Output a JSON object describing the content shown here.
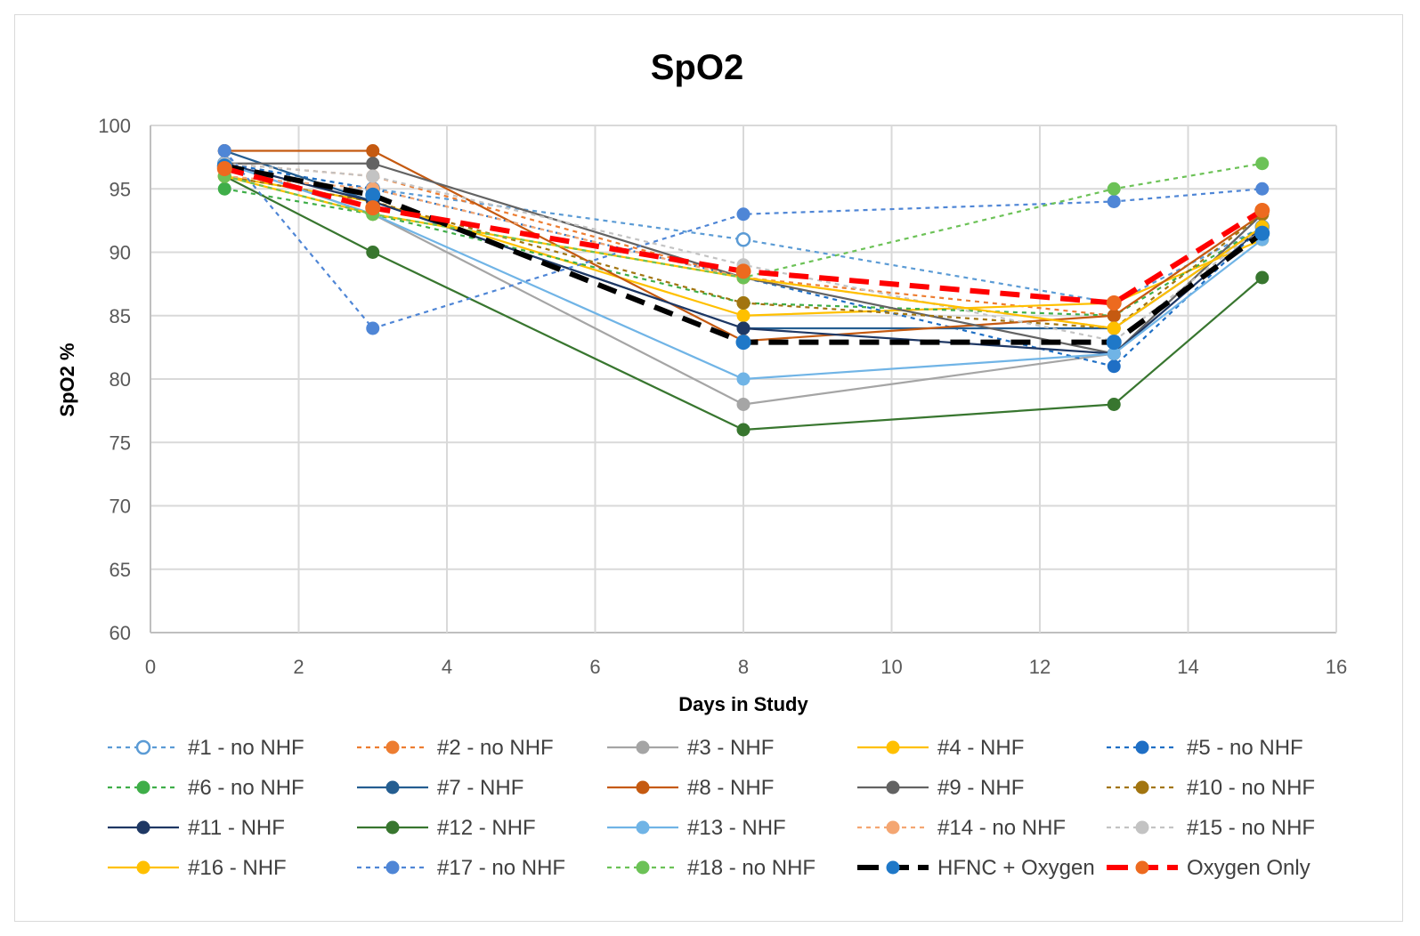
{
  "chart_data": {
    "type": "line",
    "title": "SpO2",
    "xlabel": "Days in Study",
    "ylabel": "SpO2 %",
    "xlim": [
      0,
      16
    ],
    "ylim": [
      60,
      100
    ],
    "x_ticks": [
      "0",
      "2",
      "4",
      "6",
      "8",
      "10",
      "12",
      "14",
      "16"
    ],
    "y_ticks": [
      "60",
      "65",
      "70",
      "75",
      "80",
      "85",
      "90",
      "95",
      "100"
    ],
    "grid": true,
    "legend_position": "bottom",
    "x": [
      1,
      3,
      8,
      13,
      15
    ],
    "series": [
      {
        "name": "#1 - no NHF",
        "color": "#5b9bd5",
        "dash": "dotted",
        "marker": "open-circle",
        "values": [
          97,
          95,
          91,
          86,
          92
        ]
      },
      {
        "name": "#2 - no NHF",
        "color": "#ed7d31",
        "dash": "dotted",
        "marker": "circle",
        "values": [
          97,
          96,
          88,
          85,
          93
        ]
      },
      {
        "name": "#3 - NHF",
        "color": "#a5a5a5",
        "dash": "solid",
        "marker": "circle",
        "values": [
          97,
          93,
          78,
          82,
          93
        ]
      },
      {
        "name": "#4 - NHF",
        "color": "#ffc000",
        "dash": "solid",
        "marker": "circle",
        "values": [
          96,
          94,
          85,
          86,
          91
        ]
      },
      {
        "name": "#5 - no NHF",
        "color": "#1f6fc5",
        "dash": "dotted",
        "marker": "circle",
        "values": [
          97,
          95,
          88,
          81,
          92
        ]
      },
      {
        "name": "#6 - no NHF",
        "color": "#3fae49",
        "dash": "dotted",
        "marker": "circle",
        "values": [
          95,
          93,
          86,
          85,
          92
        ]
      },
      {
        "name": "#7 - NHF",
        "color": "#255e91",
        "dash": "solid",
        "marker": "circle",
        "values": [
          98,
          94,
          84,
          84,
          92
        ]
      },
      {
        "name": "#8 - NHF",
        "color": "#c55a11",
        "dash": "solid",
        "marker": "circle",
        "values": [
          98,
          98,
          83,
          85,
          93
        ]
      },
      {
        "name": "#9 - NHF",
        "color": "#636363",
        "dash": "solid",
        "marker": "circle",
        "values": [
          97,
          97,
          88,
          82,
          93
        ]
      },
      {
        "name": "#10 - no NHF",
        "color": "#a27510",
        "dash": "dotted",
        "marker": "circle",
        "values": [
          96,
          94,
          86,
          84,
          93
        ]
      },
      {
        "name": "#11 - NHF",
        "color": "#1f3864",
        "dash": "solid",
        "marker": "circle",
        "values": [
          97,
          94,
          84,
          82,
          92
        ]
      },
      {
        "name": "#12 - NHF",
        "color": "#38762f",
        "dash": "solid",
        "marker": "circle",
        "values": [
          96,
          90,
          76,
          78,
          88
        ]
      },
      {
        "name": "#13 - NHF",
        "color": "#70b4e6",
        "dash": "solid",
        "marker": "circle",
        "values": [
          97,
          93,
          80,
          82,
          91
        ]
      },
      {
        "name": "#14 - no NHF",
        "color": "#f4a672",
        "dash": "dotted",
        "marker": "circle",
        "values": [
          96,
          95,
          88,
          84,
          92
        ]
      },
      {
        "name": "#15 - no NHF",
        "color": "#c3c3c3",
        "dash": "dotted",
        "marker": "circle",
        "values": [
          97,
          96,
          89,
          83,
          92
        ]
      },
      {
        "name": "#16 - NHF",
        "color": "#ffc000",
        "dash": "solid",
        "marker": "circle",
        "values": [
          96,
          93,
          88,
          84,
          92
        ]
      },
      {
        "name": "#17 - no NHF",
        "color": "#4f86d6",
        "dash": "dotted",
        "marker": "circle",
        "values": [
          98,
          84,
          93,
          94,
          95
        ]
      },
      {
        "name": "#18 - no NHF",
        "color": "#6cc257",
        "dash": "dotted",
        "marker": "circle",
        "values": [
          96,
          93,
          88,
          95,
          97
        ]
      },
      {
        "name": "HFNC + Oxygen",
        "color": "#000000",
        "marker_color": "#1f78c8",
        "dash": "dashed-bold",
        "marker": "circle",
        "values": [
          96.8,
          94.5,
          82.9,
          82.9,
          91.5
        ]
      },
      {
        "name": "Oxygen Only",
        "color": "#ff0000",
        "marker_color": "#ed6a1f",
        "dash": "dashed-bold",
        "marker": "circle",
        "values": [
          96.6,
          93.5,
          88.5,
          86.0,
          93.3
        ]
      }
    ]
  }
}
